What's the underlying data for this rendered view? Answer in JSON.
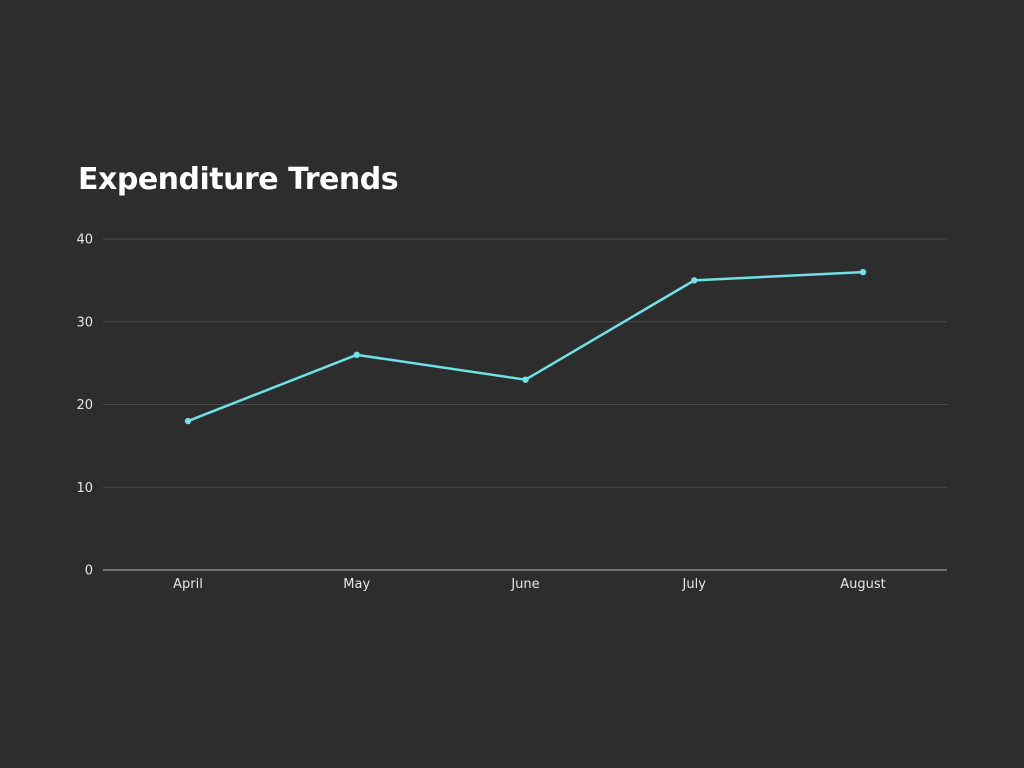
{
  "chart_data": {
    "type": "line",
    "title": "Expenditure Trends",
    "xlabel": "",
    "ylabel": "",
    "categories": [
      "April",
      "May",
      "June",
      "July",
      "August"
    ],
    "series": [
      {
        "values": [
          18,
          26,
          23,
          35,
          36
        ]
      }
    ],
    "ylim": [
      0,
      40
    ],
    "yticks": [
      0,
      10,
      20,
      30,
      40
    ],
    "grid": true,
    "legend": "none",
    "colors": {
      "background": "#2d2d2d",
      "line": "#6ee2e4",
      "grid": "#4a4a4a",
      "axis": "#8a8a8a",
      "text": "#e6e6e6",
      "title": "#ffffff"
    }
  }
}
